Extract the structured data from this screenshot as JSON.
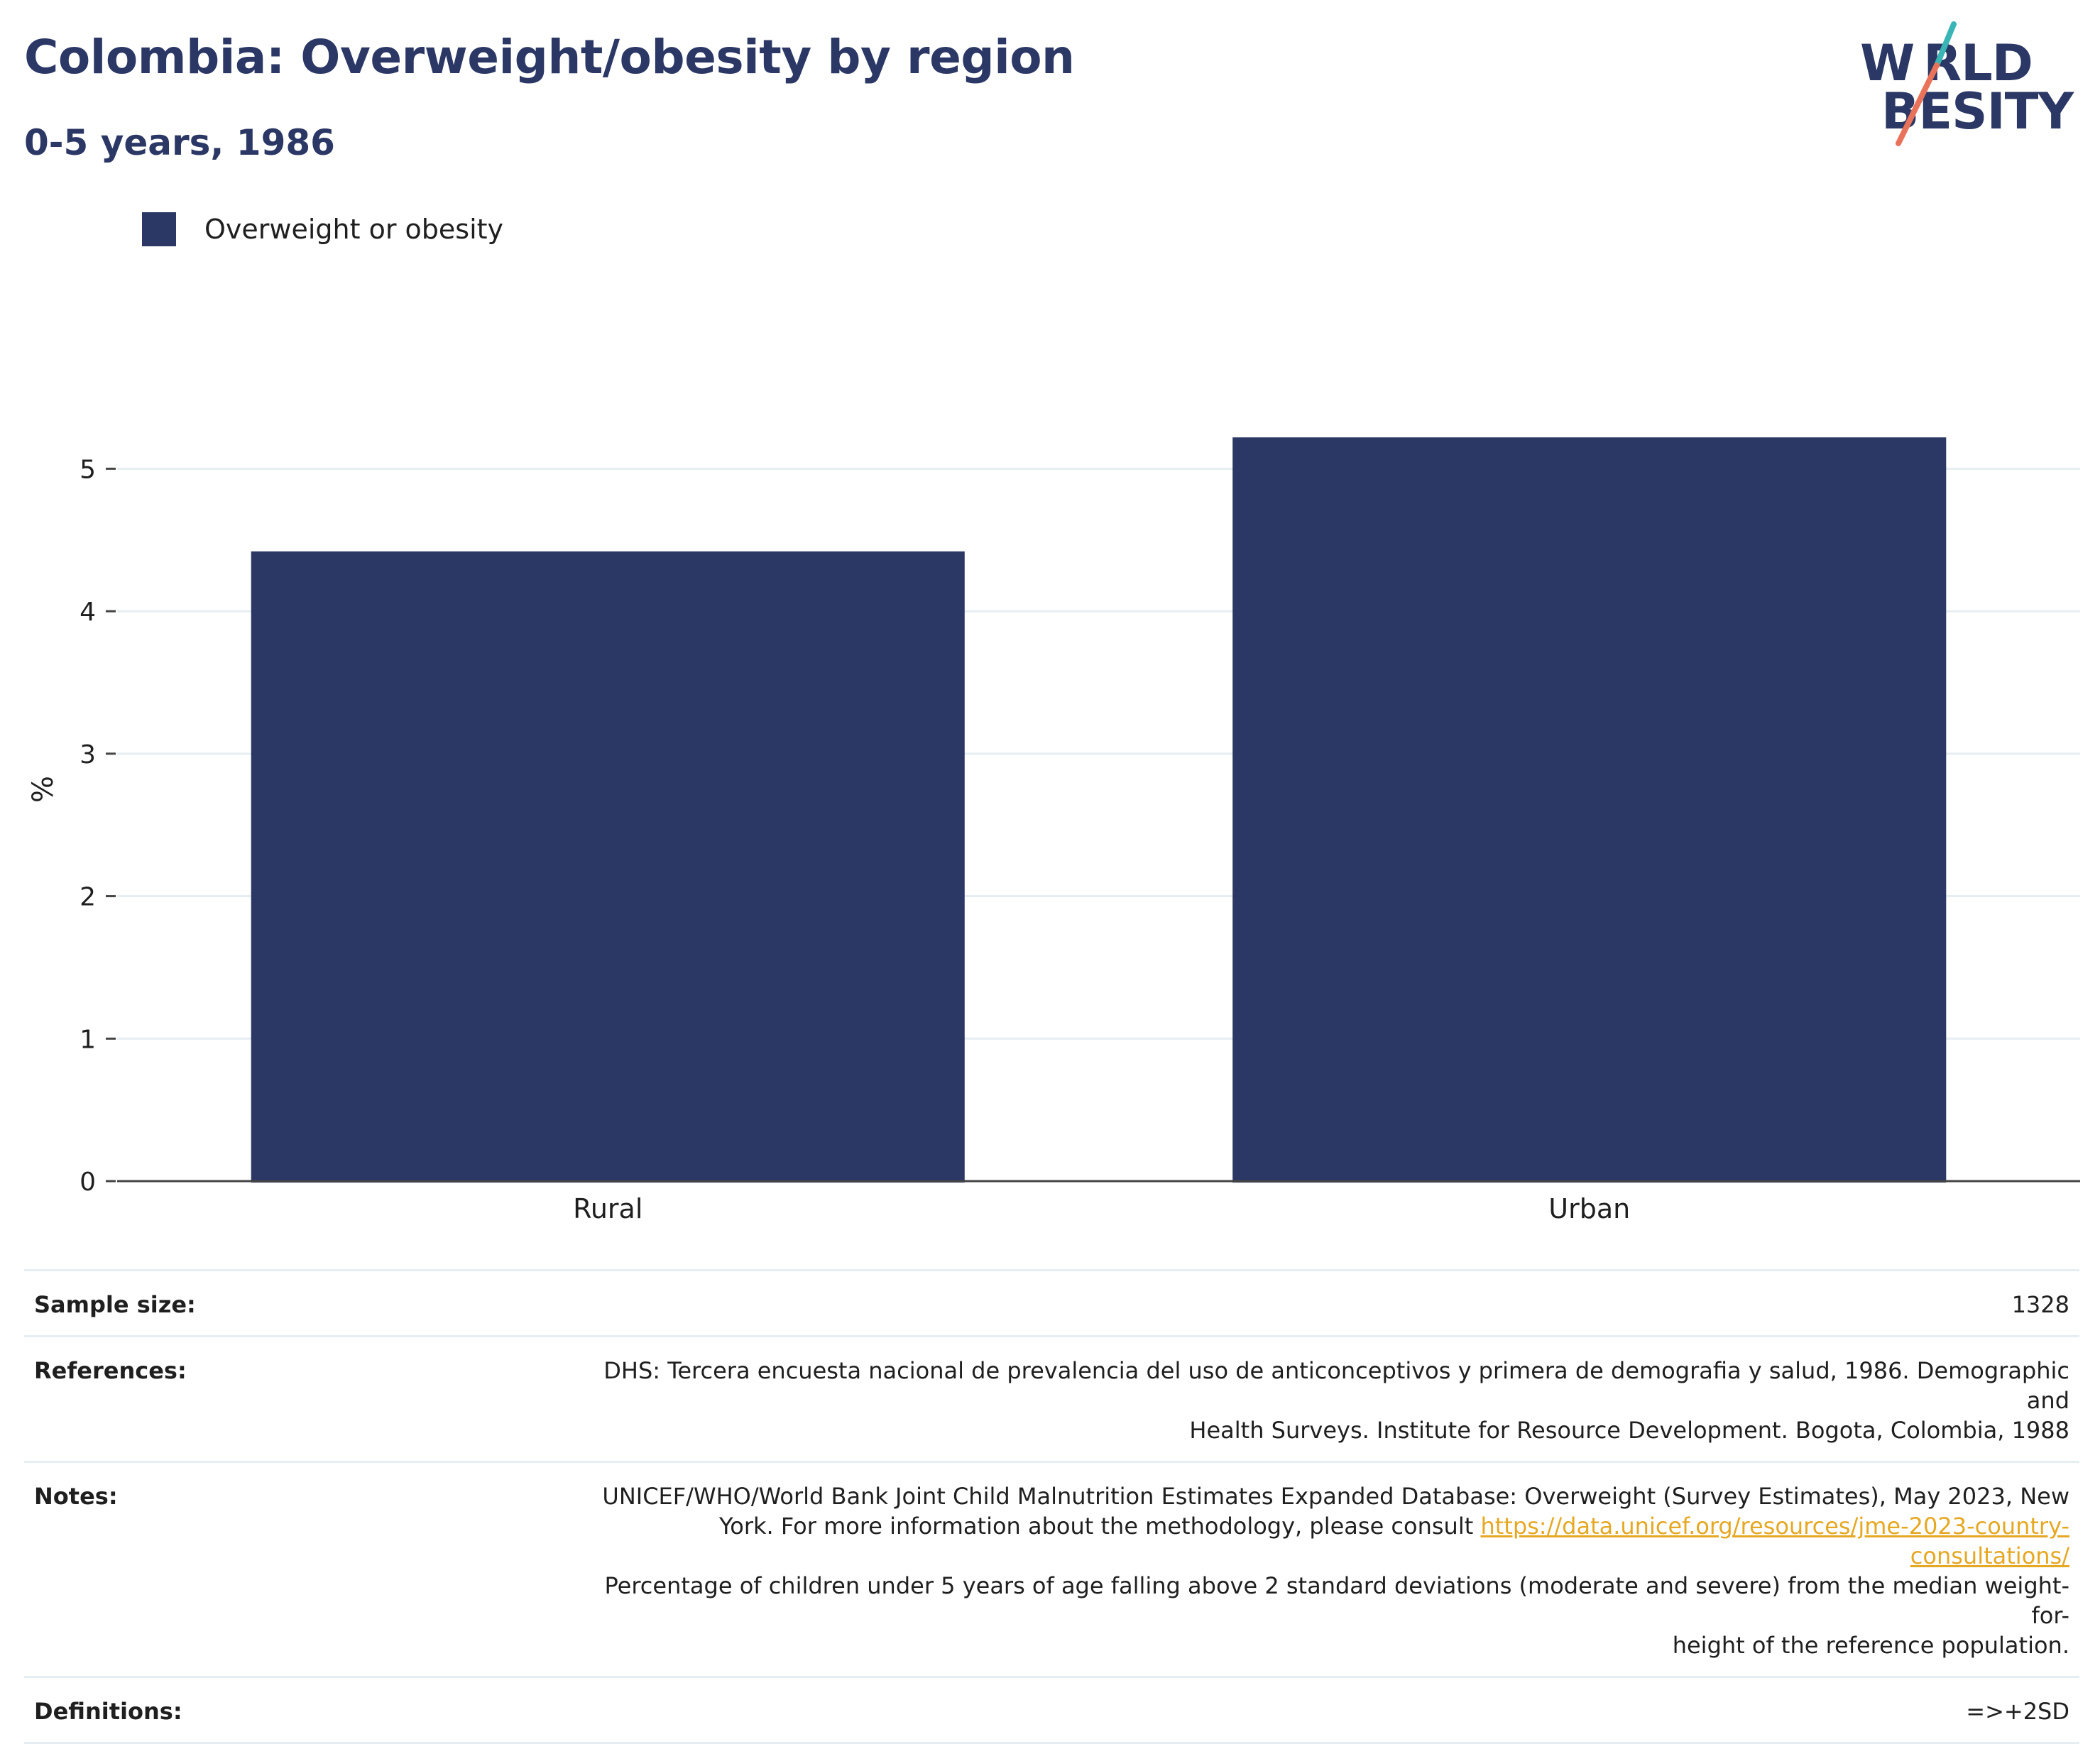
{
  "header": {
    "title": "Colombia: Overweight/obesity by region",
    "subtitle": "0-5 years, 1986"
  },
  "logo": {
    "line1": "W RLD",
    "line2": "BESITY",
    "text": "WORLD OBESITY",
    "accent_teal": "#3ab5b5",
    "accent_coral": "#e8735a"
  },
  "colors": {
    "bar": "#2b3764",
    "title": "#2b3764",
    "link": "#e5a823",
    "grid": "#e6eef2"
  },
  "legend": {
    "label": "Overweight or obesity"
  },
  "chart_data": {
    "type": "bar",
    "categories": [
      "Rural",
      "Urban"
    ],
    "series": [
      {
        "name": "Overweight or obesity",
        "values": [
          4.42,
          5.22
        ]
      }
    ],
    "ylabel": "%",
    "xlabel": "",
    "ylim": [
      0,
      5.5
    ],
    "yticks": [
      0,
      1,
      2,
      3,
      4,
      5
    ],
    "grid": true,
    "legend_position": "top-left"
  },
  "info": {
    "sample_size_label": "Sample size:",
    "sample_size_value": "1328",
    "references_label": "References:",
    "references_line1": "DHS: Tercera encuesta nacional de prevalencia del uso de anticonceptivos y primera de demografia y salud, 1986. Demographic and",
    "references_line2": "Health Surveys. Institute for Resource Development. Bogota, Colombia, 1988",
    "notes_label": "Notes:",
    "notes_line1": "UNICEF/WHO/World Bank Joint Child Malnutrition Estimates Expanded Database: Overweight (Survey Estimates), May 2023, New",
    "notes_line2_prefix": "York. For more information about the methodology, please consult ",
    "notes_link": "https://data.unicef.org/resources/jme-2023-country-consultations/",
    "notes_line3": "Percentage of children under 5 years of age falling above 2 standard deviations (moderate and severe) from the median weight-for-",
    "notes_line4": "height of the reference population.",
    "definitions_label": "Definitions:",
    "definitions_value": "=>+2SD"
  }
}
